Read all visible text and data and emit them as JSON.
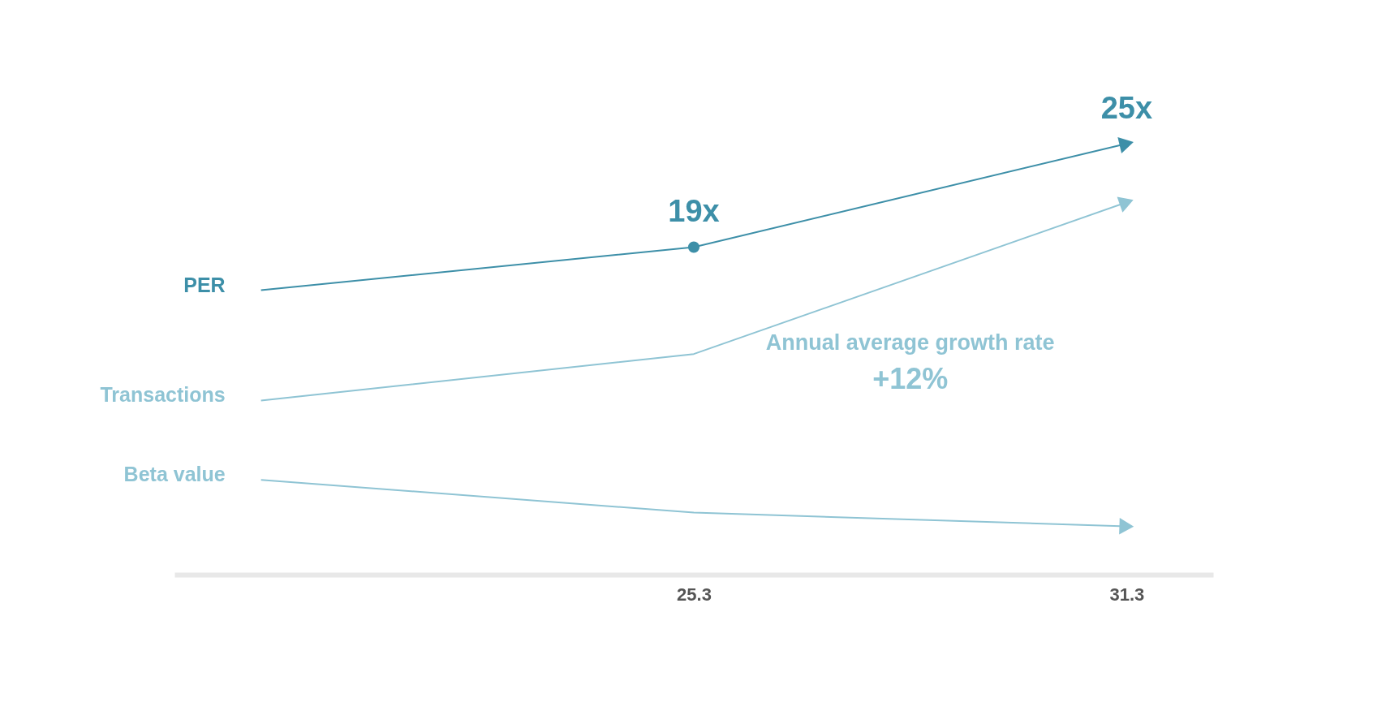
{
  "chart_data": {
    "type": "line",
    "categories": [
      null,
      "25.3",
      "31.3"
    ],
    "series": [
      {
        "name": "PER",
        "color": "#3d8fa8",
        "values": [
          16.5,
          19,
          25
        ],
        "value_labels": [
          null,
          "19x",
          "25x"
        ]
      },
      {
        "name": "Transactions",
        "color": "#8fc4d4",
        "values": [
          10.1,
          12.8,
          21.6
        ]
      },
      {
        "name": "Beta value",
        "color": "#8fc4d4",
        "values": [
          5.5,
          3.6,
          2.8
        ]
      }
    ],
    "annotations": [
      "Annual average growth rate",
      "+12%"
    ],
    "grid": false,
    "legend": false
  }
}
